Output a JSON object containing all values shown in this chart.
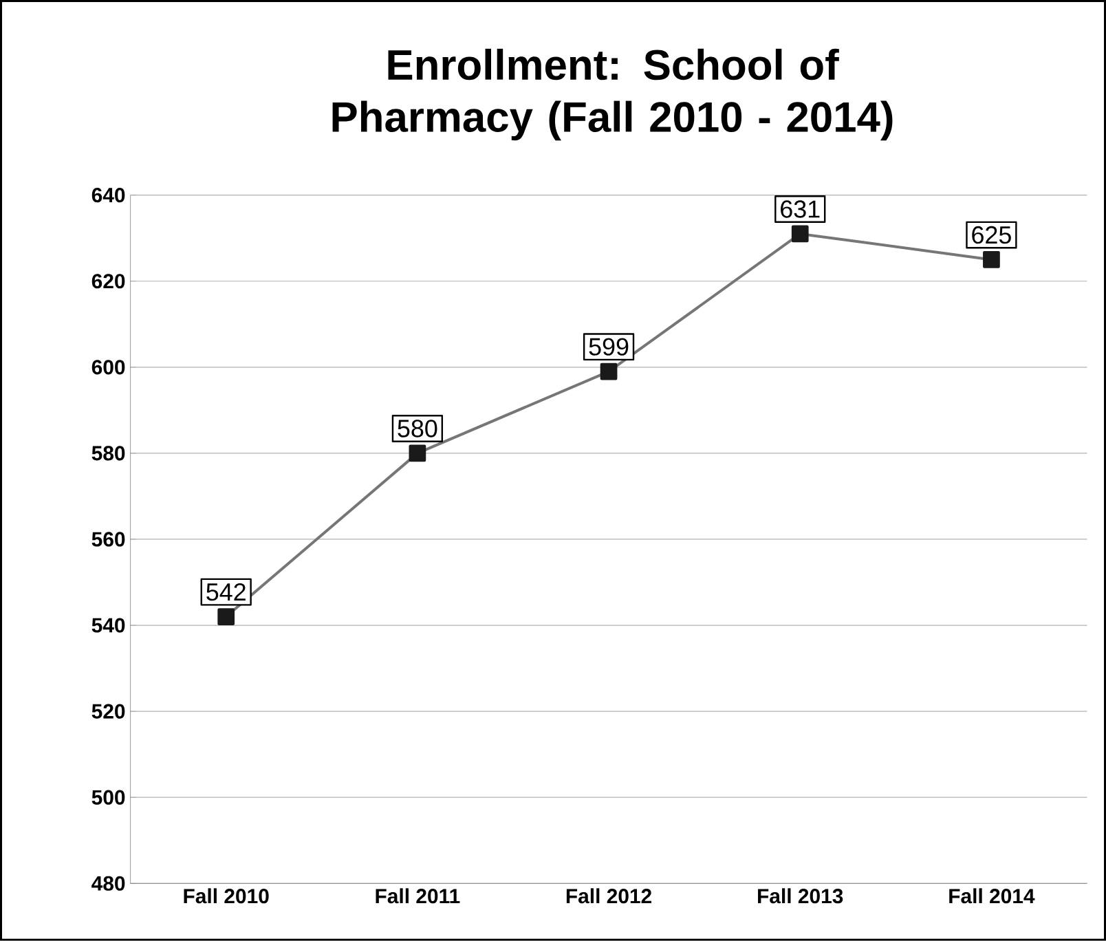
{
  "chart_data": {
    "type": "line",
    "title": "Enrollment: School of Pharmacy (Fall 2010 - 2014)",
    "categories": [
      "Fall 2010",
      "Fall 2011",
      "Fall 2012",
      "Fall 2013",
      "Fall 2014"
    ],
    "series": [
      {
        "color": "#1a1a1a",
        "values": [
          542,
          580,
          599,
          631,
          625
        ]
      }
    ],
    "ylim": [
      480,
      640
    ],
    "yticks": [
      480,
      500,
      520,
      540,
      560,
      580,
      600,
      620,
      640
    ],
    "grid": "y",
    "marker": "square",
    "line_style": "solid",
    "data_labels": true
  }
}
